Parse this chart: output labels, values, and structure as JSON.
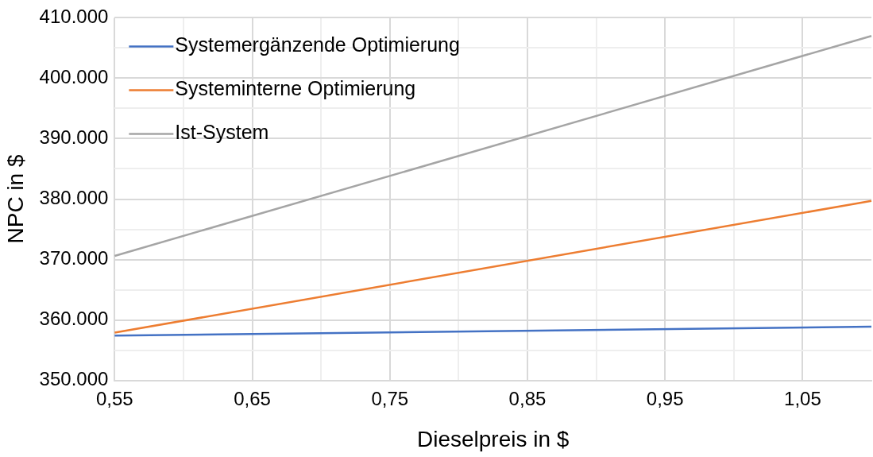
{
  "chart_data": {
    "type": "line",
    "xlabel": "Dieselpreis in $",
    "ylabel": "NPC in $",
    "x": [
      0.55,
      1.1
    ],
    "xlim": [
      0.55,
      1.1
    ],
    "xticks": [
      {
        "value": 0.55,
        "label": "0,55"
      },
      {
        "value": 0.6,
        "label": null
      },
      {
        "value": 0.65,
        "label": "0,65"
      },
      {
        "value": 0.7,
        "label": null
      },
      {
        "value": 0.75,
        "label": "0,75"
      },
      {
        "value": 0.8,
        "label": null
      },
      {
        "value": 0.85,
        "label": "0,85"
      },
      {
        "value": 0.9,
        "label": null
      },
      {
        "value": 0.95,
        "label": "0,95"
      },
      {
        "value": 1.0,
        "label": null
      },
      {
        "value": 1.05,
        "label": "1,05"
      }
    ],
    "ylim": [
      350000,
      410000
    ],
    "yticks": [
      {
        "value": 350000,
        "label": "350.000"
      },
      {
        "value": 355000,
        "label": null
      },
      {
        "value": 360000,
        "label": "360.000"
      },
      {
        "value": 365000,
        "label": null
      },
      {
        "value": 370000,
        "label": "370.000"
      },
      {
        "value": 375000,
        "label": null
      },
      {
        "value": 380000,
        "label": "380.000"
      },
      {
        "value": 385000,
        "label": null
      },
      {
        "value": 390000,
        "label": "390.000"
      },
      {
        "value": 395000,
        "label": null
      },
      {
        "value": 400000,
        "label": "400.000"
      },
      {
        "value": 405000,
        "label": null
      },
      {
        "value": 410000,
        "label": "410.000"
      }
    ],
    "grid": true,
    "legend": "top left",
    "marker": "none",
    "line_style": "solid",
    "series": [
      {
        "name": "Systemergänzende Optimierung",
        "color": "#4472c4",
        "values": [
          357400,
          358900
        ]
      },
      {
        "name": "Systeminterne Optimierung",
        "color": "#ed7d31",
        "values": [
          357900,
          379700
        ]
      },
      {
        "name": "Ist-System",
        "color": "#a5a5a5",
        "values": [
          370600,
          407000
        ]
      }
    ]
  }
}
